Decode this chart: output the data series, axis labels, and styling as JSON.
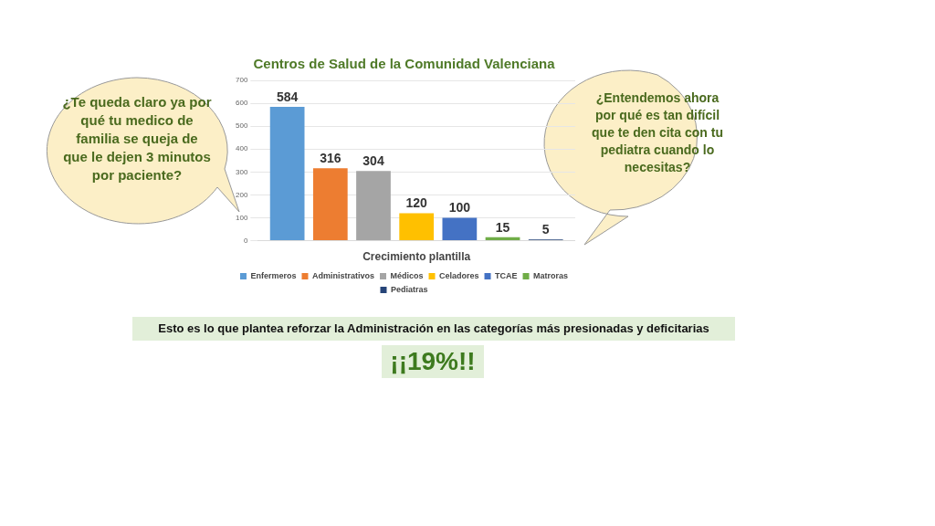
{
  "chart_data": {
    "type": "bar",
    "title": "Centros de Salud de la Comunidad Valenciana",
    "categories": [
      "Crecimiento plantilla"
    ],
    "series": [
      {
        "name": "Enfermeros",
        "color": "#5b9bd5",
        "values": [
          584
        ]
      },
      {
        "name": "Administrativos",
        "color": "#ed7d31",
        "values": [
          316
        ]
      },
      {
        "name": "Médicos",
        "color": "#a5a5a5",
        "values": [
          304
        ]
      },
      {
        "name": "Celadores",
        "color": "#ffc000",
        "values": [
          120
        ]
      },
      {
        "name": "TCAE",
        "color": "#4472c4",
        "values": [
          100
        ]
      },
      {
        "name": "Matroras",
        "color": "#70ad47",
        "values": [
          15
        ]
      },
      {
        "name": "Pediatras",
        "color": "#264478",
        "values": [
          5
        ]
      }
    ],
    "ylim": [
      0,
      700
    ],
    "yticks": [
      0,
      100,
      200,
      300,
      400,
      500,
      600,
      700
    ],
    "grid": "y",
    "legend": "bottom",
    "data_labels": true,
    "annotations": [
      "¿Te queda claro ya por qué tu medico de familia se queja de que le dejen 3 minutos por paciente?",
      "¿Entendemos ahora por qué es tan difícil que te den cita con tu pediatra cuando lo necesitas?",
      "Esto es lo que plantea reforzar la Administración en las categorías más presionadas y deficitarias",
      "¡¡19%!!"
    ]
  }
}
